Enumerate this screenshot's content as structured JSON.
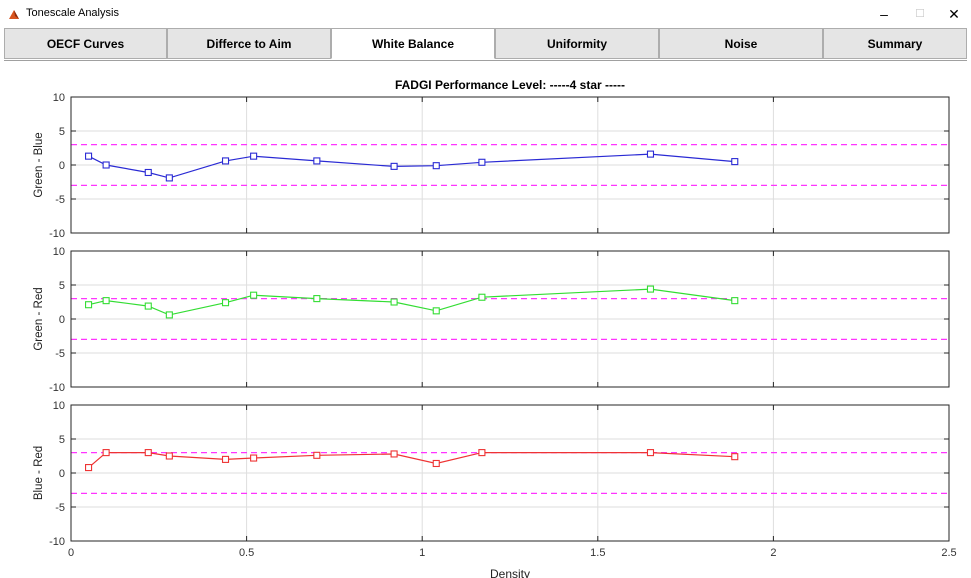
{
  "window": {
    "title": "Tonescale Analysis",
    "minimize": "–",
    "maximize": "☐",
    "close": "✕"
  },
  "tabs": [
    {
      "label": "OECF Curves",
      "active": false
    },
    {
      "label": "Differce to Aim",
      "active": false
    },
    {
      "label": "White Balance",
      "active": true
    },
    {
      "label": "Uniformity",
      "active": false
    },
    {
      "label": "Noise",
      "active": false
    },
    {
      "label": "Summary",
      "active": false
    }
  ],
  "chart_data": {
    "type": "line",
    "title": "FADGI Performance Level: -----4 star -----",
    "xlabel": "Density",
    "xlim": [
      0,
      2.5
    ],
    "xticks": [
      "0",
      "0.5",
      "1",
      "1.5",
      "2",
      "2.5"
    ],
    "grid": true,
    "threshold_lines": [
      3,
      -3
    ],
    "threshold_color": "#ff33ff",
    "x": [
      0.05,
      0.1,
      0.22,
      0.28,
      0.44,
      0.52,
      0.7,
      0.92,
      1.04,
      1.17,
      1.65,
      1.89
    ],
    "panels": [
      {
        "ylabel": "Green - Blue",
        "ylim": [
          -10,
          10
        ],
        "yticks": [
          "10",
          "5",
          "0",
          "-5",
          "-10"
        ],
        "color": "#2a2ad4",
        "values": [
          1.3,
          0.0,
          -1.1,
          -1.9,
          0.6,
          1.3,
          0.6,
          -0.2,
          -0.1,
          0.4,
          1.6,
          0.5
        ]
      },
      {
        "ylabel": "Green - Red",
        "ylim": [
          -10,
          10
        ],
        "yticks": [
          "10",
          "5",
          "0",
          "-5",
          "-10"
        ],
        "color": "#33dd33",
        "values": [
          2.1,
          2.7,
          1.9,
          0.6,
          2.4,
          3.5,
          3.0,
          2.5,
          1.2,
          3.2,
          4.4,
          2.7
        ]
      },
      {
        "ylabel": "Blue - Red",
        "ylim": [
          -10,
          10
        ],
        "yticks": [
          "10",
          "5",
          "0",
          "-5",
          "-10"
        ],
        "color": "#ee3333",
        "values": [
          0.8,
          3.0,
          3.0,
          2.5,
          2.0,
          2.2,
          2.6,
          2.8,
          1.4,
          3.0,
          3.0,
          2.4
        ]
      }
    ]
  }
}
